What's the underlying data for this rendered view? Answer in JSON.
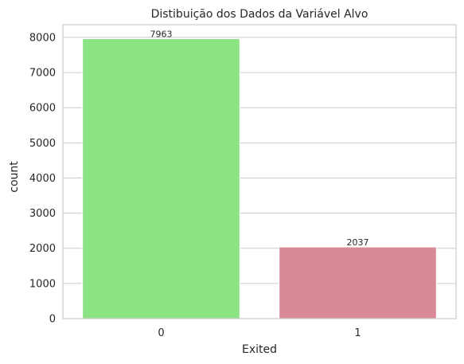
{
  "chart_data": {
    "type": "bar",
    "title": "Distibuição dos Dados da Variável Alvo",
    "xlabel": "Exited",
    "ylabel": "count",
    "categories": [
      "0",
      "1"
    ],
    "values": [
      7963,
      2037
    ],
    "data_labels": [
      "7963",
      "2037"
    ],
    "ylim": [
      0,
      8361
    ],
    "yticks": [
      0,
      1000,
      2000,
      3000,
      4000,
      5000,
      6000,
      7000,
      8000
    ],
    "ytick_labels": [
      "0",
      "1000",
      "2000",
      "3000",
      "4000",
      "5000",
      "6000",
      "7000",
      "8000"
    ],
    "colors": [
      "#8be384",
      "#d98a96"
    ],
    "grid": "horizontal",
    "legend": "none"
  }
}
